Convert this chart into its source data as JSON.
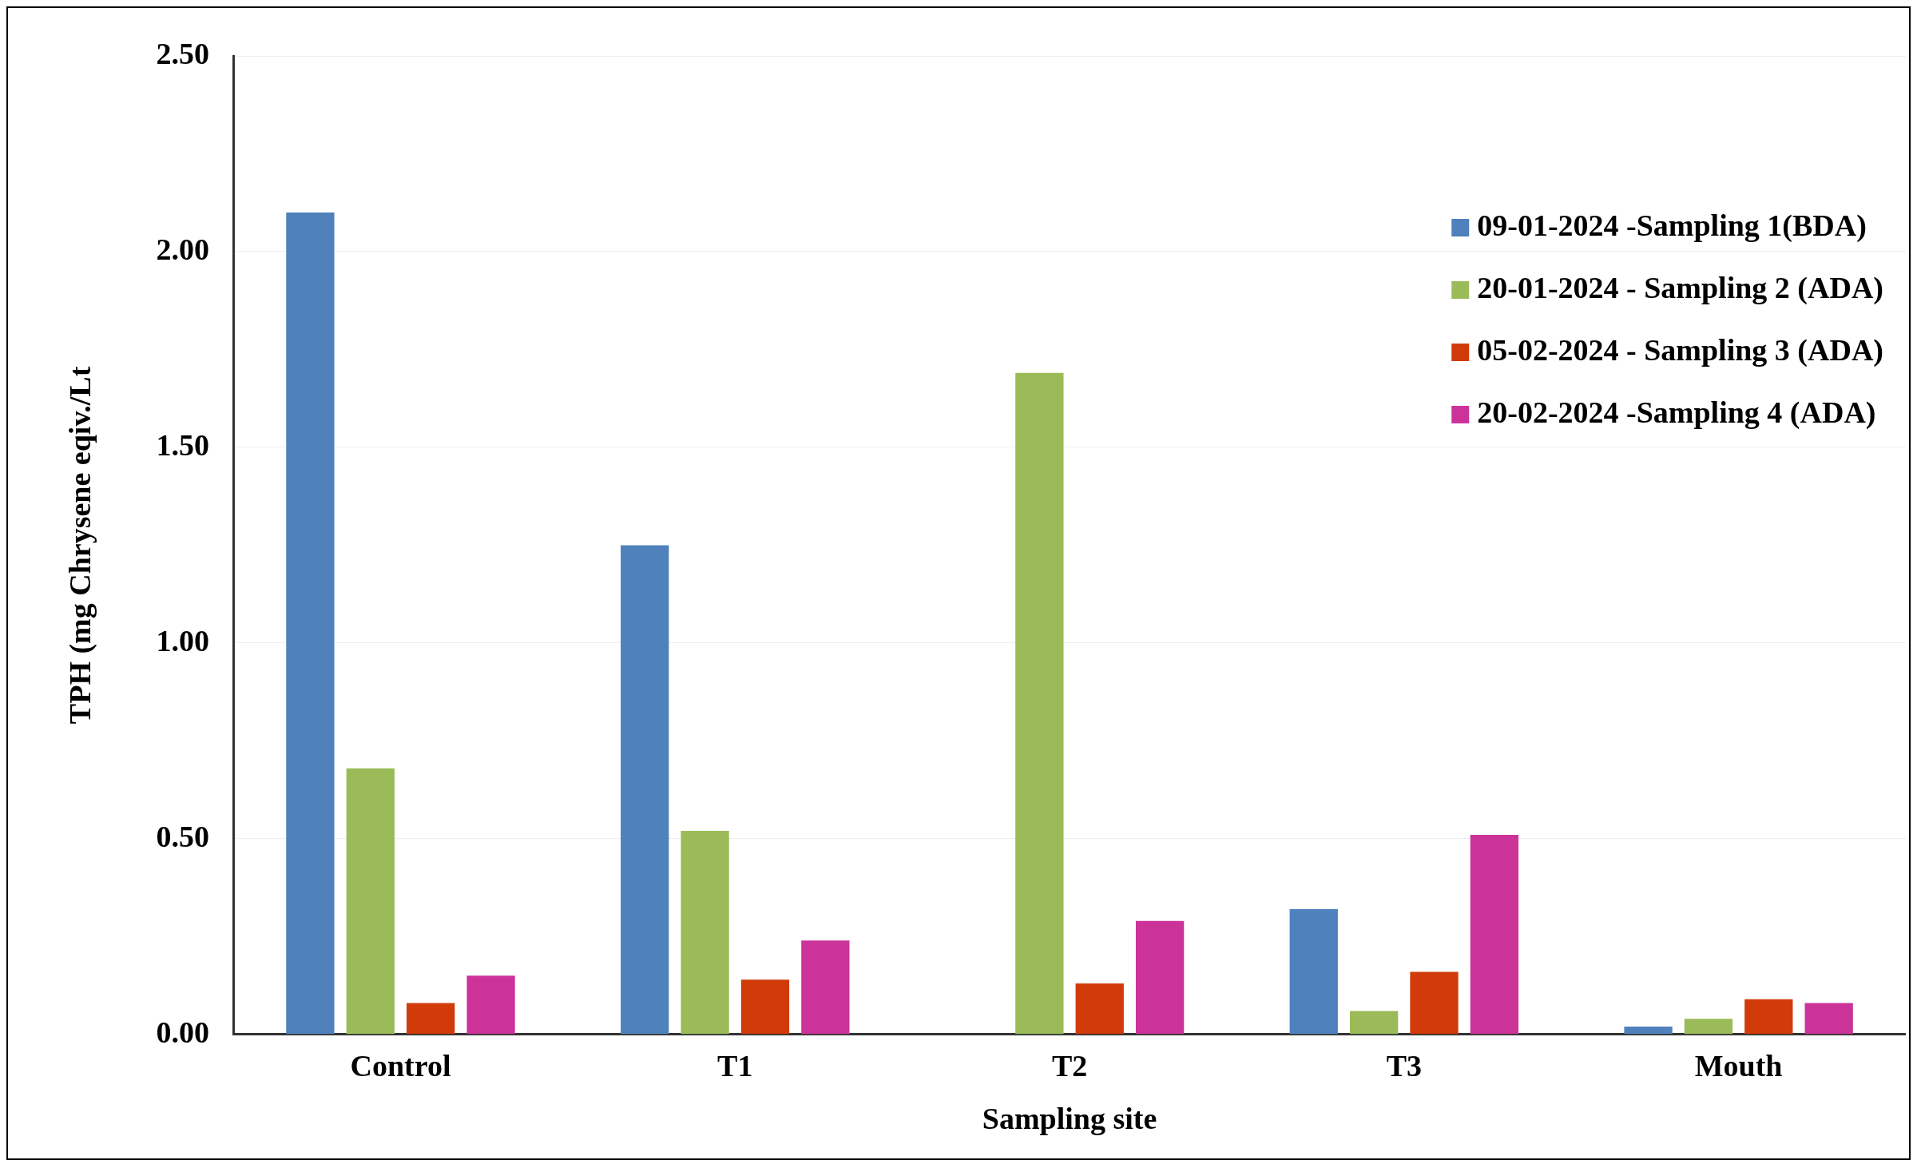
{
  "chart_data": {
    "type": "bar",
    "xlabel": "Sampling site",
    "ylabel": "TPH (mg Chrysene eqiv./Lt",
    "categories": [
      "Control",
      "T1",
      "T2",
      "T3",
      "Mouth"
    ],
    "series": [
      {
        "name": "09-01-2024 -Sampling 1(BDA)",
        "color": "#4f81bd",
        "values": [
          2.1,
          1.25,
          0,
          0.32,
          0.02
        ]
      },
      {
        "name": "20-01-2024 - Sampling 2 (ADA)",
        "color": "#9bbb59",
        "values": [
          0.68,
          0.52,
          1.69,
          0.06,
          0.04
        ]
      },
      {
        "name": "05-02-2024 - Sampling 3 (ADA)",
        "color": "#d13b0a",
        "values": [
          0.08,
          0.14,
          0.13,
          0.16,
          0.09
        ]
      },
      {
        "name": "20-02-2024 -Sampling 4 (ADA)",
        "color": "#cc3399",
        "values": [
          0.15,
          0.24,
          0.29,
          0.51,
          0.08
        ]
      }
    ],
    "ylim": [
      0,
      2.5
    ],
    "yticks": [
      {
        "value": 0,
        "label": "0.00"
      },
      {
        "value": 0.5,
        "label": "0.50"
      },
      {
        "value": 1,
        "label": "1.00"
      },
      {
        "value": 1.5,
        "label": "1.50"
      },
      {
        "value": 2,
        "label": "2.00"
      },
      {
        "value": 2.5,
        "label": "2.50"
      }
    ],
    "grid": "y",
    "legend": "top right"
  }
}
